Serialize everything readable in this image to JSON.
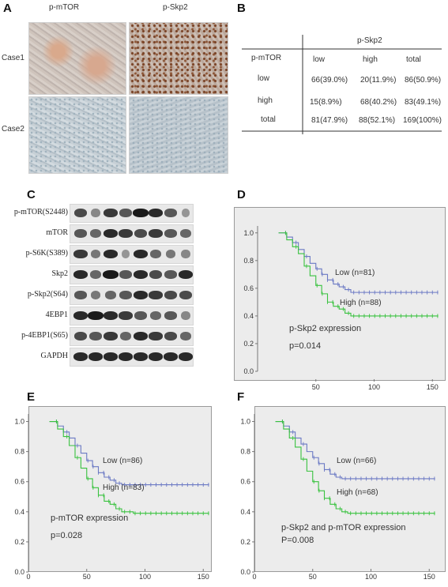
{
  "panels": {
    "A": {
      "label": "A",
      "col_headers": [
        "p-mTOR",
        "p-Skp2"
      ],
      "row_headers": [
        "Case1",
        "Case2"
      ]
    },
    "B": {
      "label": "B",
      "group_header": "p-Skp2",
      "row_header": "p-mTOR",
      "columns": [
        "low",
        "high",
        "total"
      ],
      "rows": [
        {
          "name": "low",
          "values": [
            "66(39.0%)",
            "20(11.9%)",
            "86(50.9%)"
          ]
        },
        {
          "name": "high",
          "values": [
            "15(8.9%)",
            "68(40.2%)",
            "83(49.1%)"
          ]
        },
        {
          "name": "total",
          "values": [
            "81(47.9%)",
            "88(52.1%)",
            "169(100%)"
          ]
        }
      ]
    },
    "C": {
      "label": "C",
      "blots": [
        {
          "name": "p-mTOR(S2448)",
          "bands": [
            0.7,
            0.3,
            0.8,
            0.6,
            1.0,
            0.9,
            0.6,
            0.2
          ]
        },
        {
          "name": "mTOR",
          "bands": [
            0.6,
            0.5,
            0.9,
            0.8,
            0.7,
            0.8,
            0.6,
            0.5
          ]
        },
        {
          "name": "p-S6K(S389)",
          "bands": [
            0.8,
            0.4,
            0.9,
            0.2,
            0.9,
            0.5,
            0.4,
            0.3
          ]
        },
        {
          "name": "Skp2",
          "bands": [
            0.9,
            0.5,
            1.0,
            0.6,
            0.9,
            0.7,
            0.6,
            0.9
          ]
        },
        {
          "name": "p-Skp2(S64)",
          "bands": [
            0.6,
            0.4,
            0.5,
            0.6,
            0.9,
            0.8,
            0.7,
            0.7
          ]
        },
        {
          "name": "4EBP1",
          "bands": [
            0.9,
            1.0,
            0.9,
            0.8,
            0.6,
            0.5,
            0.6,
            0.3
          ]
        },
        {
          "name": "p-4EBP1(S65)",
          "bands": [
            0.7,
            0.6,
            0.8,
            0.5,
            0.9,
            0.8,
            0.7,
            0.5
          ]
        },
        {
          "name": "GAPDH",
          "bands": [
            0.9,
            0.9,
            0.9,
            0.9,
            0.9,
            0.9,
            0.9,
            0.9
          ]
        }
      ]
    },
    "D": {
      "label": "D",
      "note": "p-Skp2 expression",
      "pvalue": "p=0.014",
      "low_label": "Low (n=81)",
      "high_label": "High (n=88)"
    },
    "E": {
      "label": "E",
      "note": "p-mTOR expression",
      "pvalue": "p=0.028",
      "low_label": "Low (n=86)",
      "high_label": "High (n=83)"
    },
    "F": {
      "label": "F",
      "note": "p-Skp2 and p-mTOR expression",
      "pvalue": "P=0.008",
      "low_label": "Low (n=66)",
      "high_label": "High (n=68)"
    }
  },
  "colors": {
    "low_curve": "#6b79c4",
    "high_curve": "#39c23f",
    "km_bg": "#ececec"
  },
  "chart_data": [
    {
      "type": "line",
      "panel": "D",
      "x_ticks": [
        "50",
        "100",
        "150"
      ],
      "y_ticks": [
        "0.0",
        "0.2",
        "0.4",
        "0.6",
        "0.8",
        "1.0"
      ],
      "xlim": [
        0,
        160
      ],
      "ylim": [
        0,
        1.05
      ],
      "series": [
        {
          "name": "Low (n=81)",
          "color": "#6b79c4",
          "x": [
            18,
            25,
            30,
            35,
            40,
            45,
            50,
            55,
            60,
            65,
            70,
            75,
            80,
            90,
            100,
            155
          ],
          "y": [
            1.0,
            0.97,
            0.93,
            0.88,
            0.83,
            0.78,
            0.74,
            0.7,
            0.66,
            0.63,
            0.61,
            0.59,
            0.57,
            0.57,
            0.57,
            0.57
          ]
        },
        {
          "name": "High (n=88)",
          "color": "#39c23f",
          "x": [
            18,
            25,
            30,
            35,
            40,
            45,
            50,
            55,
            60,
            65,
            70,
            75,
            80,
            90,
            100,
            155
          ],
          "y": [
            1.0,
            0.95,
            0.9,
            0.85,
            0.76,
            0.69,
            0.62,
            0.56,
            0.5,
            0.47,
            0.45,
            0.42,
            0.4,
            0.4,
            0.4,
            0.4
          ]
        }
      ]
    },
    {
      "type": "line",
      "panel": "E",
      "x_ticks": [
        "0",
        "50",
        "100",
        "150"
      ],
      "y_ticks": [
        "0.0",
        "0.2",
        "0.4",
        "0.6",
        "0.8",
        "1.0"
      ],
      "xlim": [
        0,
        160
      ],
      "ylim": [
        0,
        1.05
      ],
      "series": [
        {
          "name": "Low (n=86)",
          "color": "#6b79c4",
          "x": [
            18,
            25,
            30,
            35,
            40,
            45,
            50,
            55,
            60,
            65,
            70,
            75,
            80,
            90,
            100,
            155
          ],
          "y": [
            1.0,
            0.97,
            0.93,
            0.89,
            0.84,
            0.79,
            0.74,
            0.7,
            0.66,
            0.63,
            0.61,
            0.59,
            0.58,
            0.58,
            0.58,
            0.58
          ]
        },
        {
          "name": "High (n=83)",
          "color": "#39c23f",
          "x": [
            18,
            25,
            30,
            35,
            40,
            45,
            50,
            55,
            60,
            65,
            70,
            75,
            80,
            90,
            100,
            155
          ],
          "y": [
            1.0,
            0.95,
            0.9,
            0.84,
            0.76,
            0.69,
            0.62,
            0.56,
            0.51,
            0.47,
            0.45,
            0.42,
            0.4,
            0.39,
            0.39,
            0.39
          ]
        }
      ]
    },
    {
      "type": "line",
      "panel": "F",
      "x_ticks": [
        "0",
        "50",
        "100",
        "150"
      ],
      "y_ticks": [
        "0.0",
        "0.2",
        "0.4",
        "0.6",
        "0.8",
        "1.0"
      ],
      "xlim": [
        0,
        160
      ],
      "ylim": [
        0,
        1.05
      ],
      "series": [
        {
          "name": "Low (n=66)",
          "color": "#6b79c4",
          "x": [
            18,
            25,
            30,
            35,
            40,
            45,
            50,
            55,
            60,
            65,
            70,
            75,
            80,
            90,
            100,
            155
          ],
          "y": [
            1.0,
            0.97,
            0.93,
            0.89,
            0.85,
            0.8,
            0.76,
            0.72,
            0.68,
            0.65,
            0.63,
            0.62,
            0.62,
            0.62,
            0.62,
            0.62
          ]
        },
        {
          "name": "High (n=68)",
          "color": "#39c23f",
          "x": [
            18,
            25,
            30,
            35,
            40,
            45,
            50,
            55,
            60,
            65,
            70,
            75,
            80,
            90,
            100,
            155
          ],
          "y": [
            1.0,
            0.95,
            0.89,
            0.83,
            0.75,
            0.67,
            0.6,
            0.54,
            0.49,
            0.45,
            0.42,
            0.4,
            0.39,
            0.39,
            0.39,
            0.39
          ]
        }
      ]
    }
  ]
}
